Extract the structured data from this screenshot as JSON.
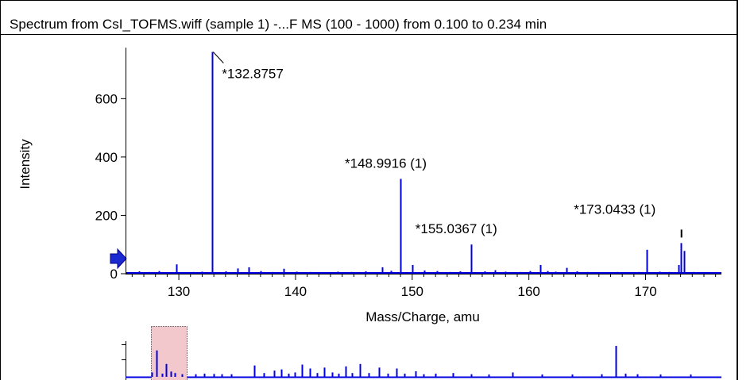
{
  "window": {
    "title": "Spectrum from CsI_TOFMS.wiff (sample 1) -...F MS (100 - 1000) from 0.100 to 0.234 min"
  },
  "colors": {
    "spectrum": "#0000e0",
    "overview_selection_fill": "#f2c8cc"
  },
  "icons": {
    "baseline_marker": "arrow-right-icon"
  },
  "chart_data": [
    {
      "type": "bar",
      "title": "Spectrum from CsI_TOFMS.wiff (sample 1) -...F MS (100 - 1000) from 0.100 to 0.234 min",
      "xlabel": "Mass/Charge, amu",
      "ylabel": "Intensity",
      "xlim": [
        125.5,
        176.5
      ],
      "ylim": [
        0,
        775
      ],
      "xticks": [
        130,
        140,
        150,
        160,
        170
      ],
      "yticks": [
        0,
        200,
        400,
        600
      ],
      "grid": false,
      "peaks": [
        {
          "x": 126.6,
          "y": 8
        },
        {
          "x": 127.4,
          "y": 6
        },
        {
          "x": 128.3,
          "y": 9
        },
        {
          "x": 129.0,
          "y": 5
        },
        {
          "x": 129.8,
          "y": 32
        },
        {
          "x": 131.2,
          "y": 6
        },
        {
          "x": 132.0,
          "y": 7
        },
        {
          "x": 132.8757,
          "y": 760
        },
        {
          "x": 134.0,
          "y": 8
        },
        {
          "x": 135.0,
          "y": 18
        },
        {
          "x": 136.0,
          "y": 22
        },
        {
          "x": 137.0,
          "y": 9
        },
        {
          "x": 138.0,
          "y": 6
        },
        {
          "x": 139.0,
          "y": 17
        },
        {
          "x": 140.1,
          "y": 7
        },
        {
          "x": 141.2,
          "y": 6
        },
        {
          "x": 142.5,
          "y": 5
        },
        {
          "x": 143.6,
          "y": 7
        },
        {
          "x": 144.8,
          "y": 6
        },
        {
          "x": 146.0,
          "y": 8
        },
        {
          "x": 147.4,
          "y": 22
        },
        {
          "x": 148.2,
          "y": 10
        },
        {
          "x": 148.9916,
          "y": 325
        },
        {
          "x": 150.0,
          "y": 30
        },
        {
          "x": 151.0,
          "y": 11
        },
        {
          "x": 152.1,
          "y": 9
        },
        {
          "x": 153.2,
          "y": 6
        },
        {
          "x": 154.1,
          "y": 8
        },
        {
          "x": 155.0367,
          "y": 100
        },
        {
          "x": 156.2,
          "y": 8
        },
        {
          "x": 157.1,
          "y": 12
        },
        {
          "x": 158.0,
          "y": 7
        },
        {
          "x": 159.2,
          "y": 6
        },
        {
          "x": 160.1,
          "y": 9
        },
        {
          "x": 161.0,
          "y": 30
        },
        {
          "x": 161.6,
          "y": 9
        },
        {
          "x": 162.3,
          "y": 7
        },
        {
          "x": 163.2,
          "y": 20
        },
        {
          "x": 164.1,
          "y": 8
        },
        {
          "x": 165.0,
          "y": 6
        },
        {
          "x": 166.3,
          "y": 5
        },
        {
          "x": 167.6,
          "y": 6
        },
        {
          "x": 168.6,
          "y": 5
        },
        {
          "x": 169.4,
          "y": 6
        },
        {
          "x": 170.1,
          "y": 82
        },
        {
          "x": 171.2,
          "y": 7
        },
        {
          "x": 172.0,
          "y": 6
        },
        {
          "x": 172.8,
          "y": 30
        },
        {
          "x": 173.0433,
          "y": 105
        },
        {
          "x": 173.3,
          "y": 78
        },
        {
          "x": 174.1,
          "y": 6
        },
        {
          "x": 175.0,
          "y": 5
        },
        {
          "x": 176.0,
          "y": 5
        }
      ],
      "annotations": [
        {
          "label": "*132.8757",
          "x": 132.8757,
          "y": 760
        },
        {
          "label": "*148.9916 (1)",
          "x": 148.9916,
          "y": 325
        },
        {
          "label": "*155.0367 (1)",
          "x": 155.0367,
          "y": 100
        },
        {
          "label": "*173.0433 (1)",
          "x": 173.0433,
          "y": 105
        }
      ]
    },
    {
      "type": "bar",
      "title": "",
      "xlabel": "",
      "ylabel": "",
      "grid": false,
      "xlim": [
        0,
        100
      ],
      "ylim": [
        0,
        100
      ],
      "selection_range": [
        4.0,
        10.0
      ],
      "peaks": [
        {
          "x": 4.2,
          "y": 12
        },
        {
          "x": 5.0,
          "y": 85
        },
        {
          "x": 5.9,
          "y": 8
        },
        {
          "x": 6.6,
          "y": 40
        },
        {
          "x": 7.4,
          "y": 15
        },
        {
          "x": 8.1,
          "y": 10
        },
        {
          "x": 9.3,
          "y": 6
        },
        {
          "x": 11.5,
          "y": 6
        },
        {
          "x": 13.0,
          "y": 8
        },
        {
          "x": 14.6,
          "y": 7
        },
        {
          "x": 16.0,
          "y": 6
        },
        {
          "x": 17.6,
          "y": 6
        },
        {
          "x": 21.5,
          "y": 35
        },
        {
          "x": 23.0,
          "y": 10
        },
        {
          "x": 24.8,
          "y": 18
        },
        {
          "x": 26.0,
          "y": 22
        },
        {
          "x": 27.2,
          "y": 8
        },
        {
          "x": 28.3,
          "y": 12
        },
        {
          "x": 29.5,
          "y": 38
        },
        {
          "x": 30.8,
          "y": 25
        },
        {
          "x": 32.0,
          "y": 10
        },
        {
          "x": 33.3,
          "y": 28
        },
        {
          "x": 34.6,
          "y": 12
        },
        {
          "x": 35.6,
          "y": 8
        },
        {
          "x": 36.8,
          "y": 32
        },
        {
          "x": 38.0,
          "y": 10
        },
        {
          "x": 39.3,
          "y": 40
        },
        {
          "x": 40.8,
          "y": 10
        },
        {
          "x": 42.5,
          "y": 28
        },
        {
          "x": 44.0,
          "y": 8
        },
        {
          "x": 45.4,
          "y": 25
        },
        {
          "x": 46.8,
          "y": 8
        },
        {
          "x": 48.6,
          "y": 16
        },
        {
          "x": 50.0,
          "y": 6
        },
        {
          "x": 52.0,
          "y": 8
        },
        {
          "x": 55.0,
          "y": 10
        },
        {
          "x": 58.0,
          "y": 6
        },
        {
          "x": 61.0,
          "y": 5
        },
        {
          "x": 65.0,
          "y": 12
        },
        {
          "x": 70.0,
          "y": 5
        },
        {
          "x": 75.0,
          "y": 5
        },
        {
          "x": 80.0,
          "y": 6
        },
        {
          "x": 82.5,
          "y": 100
        },
        {
          "x": 84.0,
          "y": 8
        },
        {
          "x": 86.0,
          "y": 6
        },
        {
          "x": 90.0,
          "y": 5
        },
        {
          "x": 95.0,
          "y": 5
        }
      ]
    }
  ]
}
